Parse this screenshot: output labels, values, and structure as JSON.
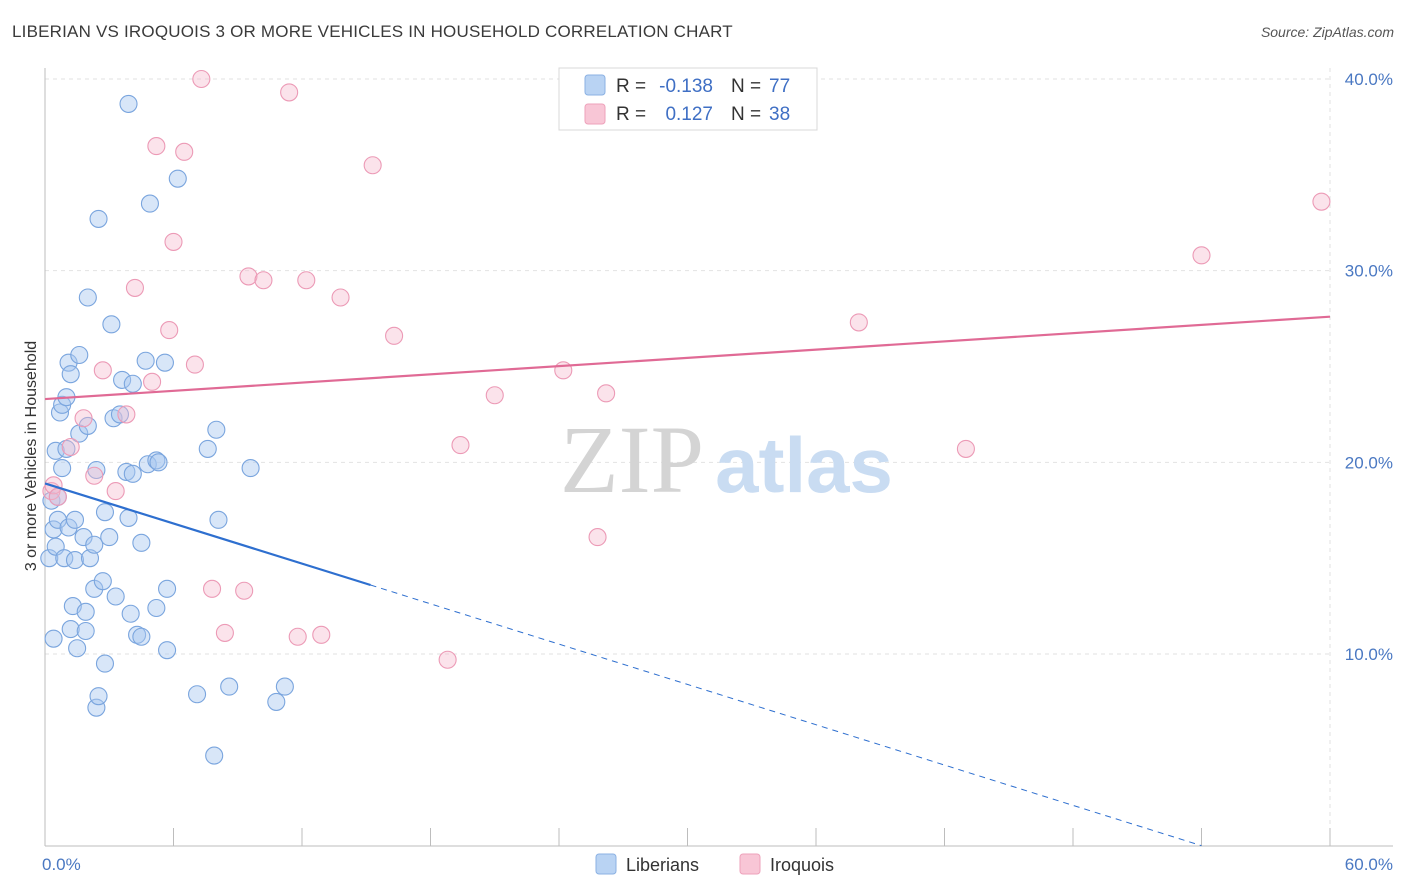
{
  "title": "LIBERIAN VS IROQUOIS 3 OR MORE VEHICLES IN HOUSEHOLD CORRELATION CHART",
  "source": "Source: ZipAtlas.com",
  "watermark": {
    "zip": "ZIP",
    "atlas": "atlas"
  },
  "chart_data": {
    "type": "scatter",
    "title": "LIBERIAN VS IROQUOIS 3 OR MORE VEHICLES IN HOUSEHOLD CORRELATION CHART",
    "xlabel": "",
    "ylabel": "3 or more Vehicles in Household",
    "xlim": [
      0,
      60
    ],
    "ylim": [
      0,
      42
    ],
    "x_tick_labels": [
      "0.0%",
      "60.0%"
    ],
    "y_ticks": [
      10,
      20,
      30,
      40
    ],
    "y_tick_labels": [
      "10.0%",
      "20.0%",
      "30.0%",
      "40.0%"
    ],
    "grid": true,
    "legend_position": "top-center",
    "colors": {
      "liberians": "#a9c8f0",
      "liberians_line": "#2e6fcf",
      "iroquois": "#f5b8cc",
      "iroquois_line": "#e06a95"
    },
    "stats": [
      {
        "series": "Liberians",
        "r_label": "R =",
        "r": "-0.138",
        "n_label": "N =",
        "n": "77"
      },
      {
        "series": "Iroquois",
        "r_label": "R =",
        "r": "0.127",
        "n_label": "N =",
        "n": "38"
      }
    ],
    "series": [
      {
        "name": "Liberians",
        "trend": {
          "x0": 0,
          "y0": 18.9,
          "x1": 15.2,
          "y1": 13.6,
          "dashed_to_x": 54,
          "dashed_to_y": 0
        },
        "points": [
          [
            0.2,
            15.0
          ],
          [
            0.3,
            18.0
          ],
          [
            0.4,
            16.5
          ],
          [
            0.4,
            10.8
          ],
          [
            0.5,
            20.6
          ],
          [
            0.5,
            15.6
          ],
          [
            0.6,
            17.0
          ],
          [
            0.6,
            18.2
          ],
          [
            0.7,
            22.6
          ],
          [
            0.8,
            19.7
          ],
          [
            0.8,
            23.0
          ],
          [
            0.9,
            15.0
          ],
          [
            1.0,
            23.4
          ],
          [
            1.0,
            20.7
          ],
          [
            1.1,
            25.2
          ],
          [
            1.1,
            16.6
          ],
          [
            1.2,
            24.6
          ],
          [
            1.2,
            11.3
          ],
          [
            1.3,
            12.5
          ],
          [
            1.4,
            17.0
          ],
          [
            1.4,
            14.9
          ],
          [
            1.5,
            10.3
          ],
          [
            1.6,
            25.6
          ],
          [
            1.6,
            21.5
          ],
          [
            1.8,
            16.1
          ],
          [
            1.9,
            12.2
          ],
          [
            1.9,
            11.2
          ],
          [
            2.0,
            21.9
          ],
          [
            2.0,
            28.6
          ],
          [
            2.1,
            15.0
          ],
          [
            2.3,
            13.4
          ],
          [
            2.3,
            15.7
          ],
          [
            2.4,
            7.2
          ],
          [
            2.4,
            19.6
          ],
          [
            2.5,
            32.7
          ],
          [
            2.5,
            7.8
          ],
          [
            2.7,
            13.8
          ],
          [
            2.8,
            17.4
          ],
          [
            2.8,
            9.5
          ],
          [
            3.0,
            16.1
          ],
          [
            3.1,
            27.2
          ],
          [
            3.2,
            22.3
          ],
          [
            3.3,
            13.0
          ],
          [
            3.5,
            22.5
          ],
          [
            3.6,
            24.3
          ],
          [
            3.8,
            19.5
          ],
          [
            3.9,
            38.7
          ],
          [
            3.9,
            17.1
          ],
          [
            4.0,
            12.1
          ],
          [
            4.1,
            19.4
          ],
          [
            4.1,
            24.1
          ],
          [
            4.3,
            11.0
          ],
          [
            4.5,
            15.8
          ],
          [
            4.5,
            10.9
          ],
          [
            4.7,
            25.3
          ],
          [
            4.8,
            19.9
          ],
          [
            4.9,
            33.5
          ],
          [
            5.2,
            20.1
          ],
          [
            5.2,
            12.4
          ],
          [
            5.3,
            20.0
          ],
          [
            5.6,
            25.2
          ],
          [
            5.7,
            10.2
          ],
          [
            5.7,
            13.4
          ],
          [
            6.2,
            34.8
          ],
          [
            7.1,
            7.9
          ],
          [
            7.6,
            20.7
          ],
          [
            7.9,
            4.7
          ],
          [
            8.0,
            21.7
          ],
          [
            8.1,
            17.0
          ],
          [
            8.6,
            8.3
          ],
          [
            9.6,
            19.7
          ],
          [
            10.8,
            7.5
          ],
          [
            11.2,
            8.3
          ]
        ]
      },
      {
        "name": "Iroquois",
        "trend": {
          "x0": 0,
          "y0": 23.3,
          "x1": 60,
          "y1": 27.6
        },
        "points": [
          [
            0.3,
            18.5
          ],
          [
            0.4,
            18.8
          ],
          [
            0.6,
            18.2
          ],
          [
            1.2,
            20.8
          ],
          [
            1.8,
            22.3
          ],
          [
            2.3,
            19.3
          ],
          [
            2.7,
            24.8
          ],
          [
            3.3,
            18.5
          ],
          [
            3.8,
            22.5
          ],
          [
            4.2,
            29.1
          ],
          [
            5.0,
            24.2
          ],
          [
            5.2,
            36.5
          ],
          [
            5.8,
            26.9
          ],
          [
            6.0,
            31.5
          ],
          [
            6.5,
            36.2
          ],
          [
            7.0,
            25.1
          ],
          [
            7.3,
            40.0
          ],
          [
            7.8,
            13.4
          ],
          [
            8.4,
            11.1
          ],
          [
            9.3,
            13.3
          ],
          [
            9.5,
            29.7
          ],
          [
            10.2,
            29.5
          ],
          [
            11.4,
            39.3
          ],
          [
            11.8,
            10.9
          ],
          [
            12.2,
            29.5
          ],
          [
            12.9,
            11.0
          ],
          [
            13.8,
            28.6
          ],
          [
            15.3,
            35.5
          ],
          [
            16.3,
            26.6
          ],
          [
            18.8,
            9.7
          ],
          [
            19.4,
            20.9
          ],
          [
            21.0,
            23.5
          ],
          [
            24.2,
            24.8
          ],
          [
            25.8,
            16.1
          ],
          [
            26.2,
            23.6
          ],
          [
            38.0,
            27.3
          ],
          [
            43.0,
            20.7
          ],
          [
            54.0,
            30.8
          ],
          [
            59.6,
            33.6
          ]
        ]
      }
    ]
  }
}
